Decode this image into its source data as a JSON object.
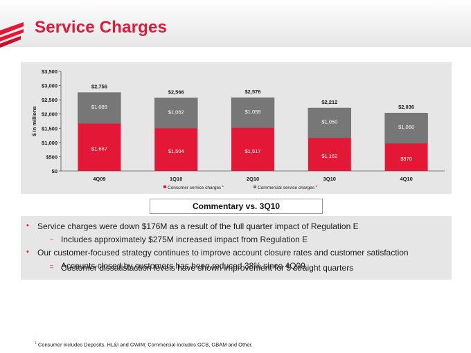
{
  "page": {
    "title": "Service Charges",
    "accent_color": "#e31837",
    "icons": [
      "flag-logo-icon"
    ]
  },
  "chart_data": {
    "type": "bar",
    "stacked": true,
    "title": "",
    "xlabel": "",
    "ylabel": "$ in millions",
    "ylim": [
      0,
      3500
    ],
    "yticks": [
      0,
      500,
      1000,
      1500,
      2000,
      2500,
      3000,
      3500
    ],
    "ytick_labels": [
      "$0",
      "$500",
      "$1,000",
      "$1,500",
      "$2,000",
      "$2,500",
      "$3,000",
      "$3,500"
    ],
    "grid": false,
    "legend_placement": "bottom",
    "categories": [
      "4Q09",
      "1Q10",
      "2Q10",
      "3Q10",
      "4Q10"
    ],
    "series": [
      {
        "name": "Consumer service charges",
        "name_superscript": "1",
        "color": "#e31837",
        "values": [
          1667,
          1504,
          1517,
          1162,
          970
        ],
        "labels": [
          "$1,667",
          "$1,504",
          "$1,517",
          "$1,162",
          "$970"
        ]
      },
      {
        "name": "Commercial service charges",
        "name_superscript": "1",
        "color": "#777777",
        "values": [
          1089,
          1062,
          1059,
          1050,
          1066
        ],
        "labels": [
          "$1,089",
          "$1,062",
          "$1,059",
          "$1,050",
          "$1,066"
        ]
      }
    ],
    "totals": [
      2756,
      2566,
      2576,
      2212,
      2036
    ],
    "total_labels": [
      "$2,756",
      "$2,566",
      "$2,576",
      "$2,212",
      "$2,036"
    ]
  },
  "commentary": {
    "heading": "Commentary vs. 3Q10",
    "bullets": [
      {
        "text": "Service charges were down $176M as a result of the full quarter impact of Regulation E",
        "subs": [
          "Includes approximately $275M increased impact from Regulation E"
        ]
      },
      {
        "text": "Our customer-focused strategy continues to improve account closure rates and customer satisfaction",
        "subs": [
          "Accounts closed by customers has been reduced 38% since 4Q09",
          "Customer dissatisfaction levels have shown improvement for 5 straight quarters"
        ]
      }
    ]
  },
  "footnote": {
    "marker": "1",
    "text": "Consumer includes Deposits, HL&I and GWIM; Commercial includes GCB, GBAM and Other."
  }
}
